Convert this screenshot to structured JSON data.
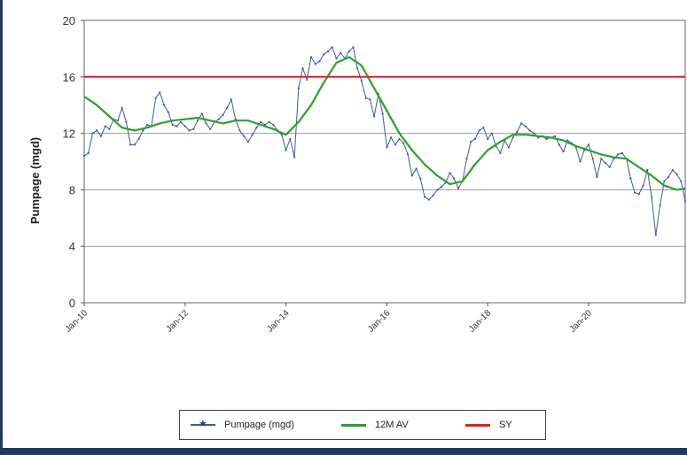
{
  "chart_data": {
    "type": "line",
    "ylabel": "Pumpage (mgd)",
    "ylim": [
      0,
      20
    ],
    "yticks": [
      0,
      4,
      8,
      12,
      16,
      20
    ],
    "xlim": [
      "Jan-10",
      "Dec-21"
    ],
    "xticks": [
      "Jan-10",
      "Jan-12",
      "Jan-14",
      "Jan-16",
      "Jan-18",
      "Jan-20"
    ],
    "grid": "horizontal",
    "legend_position": "bottom",
    "series": [
      {
        "name": "Pumpage (mgd)",
        "color": "#3b5a98",
        "marker": "star",
        "x": [
          "2010-01",
          "2010-02",
          "2010-03",
          "2010-04",
          "2010-05",
          "2010-06",
          "2010-07",
          "2010-08",
          "2010-09",
          "2010-10",
          "2010-11",
          "2010-12",
          "2011-01",
          "2011-02",
          "2011-03",
          "2011-04",
          "2011-05",
          "2011-06",
          "2011-07",
          "2011-08",
          "2011-09",
          "2011-10",
          "2011-11",
          "2011-12",
          "2012-01",
          "2012-02",
          "2012-03",
          "2012-04",
          "2012-05",
          "2012-06",
          "2012-07",
          "2012-08",
          "2012-09",
          "2012-10",
          "2012-11",
          "2012-12",
          "2013-01",
          "2013-02",
          "2013-03",
          "2013-04",
          "2013-05",
          "2013-06",
          "2013-07",
          "2013-08",
          "2013-09",
          "2013-10",
          "2013-11",
          "2013-12",
          "2014-01",
          "2014-02",
          "2014-03",
          "2014-04",
          "2014-05",
          "2014-06",
          "2014-07",
          "2014-08",
          "2014-09",
          "2014-10",
          "2014-11",
          "2014-12",
          "2015-01",
          "2015-02",
          "2015-03",
          "2015-04",
          "2015-05",
          "2015-06",
          "2015-07",
          "2015-08",
          "2015-09",
          "2015-10",
          "2015-11",
          "2015-12",
          "2016-01",
          "2016-02",
          "2016-03",
          "2016-04",
          "2016-05",
          "2016-06",
          "2016-07",
          "2016-08",
          "2016-09",
          "2016-10",
          "2016-11",
          "2016-12",
          "2017-01",
          "2017-02",
          "2017-03",
          "2017-04",
          "2017-05",
          "2017-06",
          "2017-07",
          "2017-08",
          "2017-09",
          "2017-10",
          "2017-11",
          "2017-12",
          "2018-01",
          "2018-02",
          "2018-03",
          "2018-04",
          "2018-05",
          "2018-06",
          "2018-07",
          "2018-08",
          "2018-09",
          "2018-10",
          "2018-11",
          "2018-12",
          "2019-01",
          "2019-02",
          "2019-03",
          "2019-04",
          "2019-05",
          "2019-06",
          "2019-07",
          "2019-08",
          "2019-09",
          "2019-10",
          "2019-11",
          "2019-12",
          "2020-01",
          "2020-02",
          "2020-03",
          "2020-04",
          "2020-05",
          "2020-06",
          "2020-07",
          "2020-08",
          "2020-09",
          "2020-10",
          "2020-11",
          "2020-12",
          "2021-01",
          "2021-02",
          "2021-03",
          "2021-04",
          "2021-05",
          "2021-06",
          "2021-07",
          "2021-08",
          "2021-09",
          "2021-10",
          "2021-11",
          "2021-12"
        ],
        "y": [
          10.4,
          10.6,
          12.0,
          12.2,
          11.8,
          12.5,
          12.3,
          13.0,
          12.9,
          13.8,
          12.8,
          11.2,
          11.2,
          11.6,
          12.2,
          12.6,
          12.5,
          14.5,
          14.9,
          14.0,
          13.5,
          12.6,
          12.5,
          12.8,
          12.5,
          12.2,
          12.3,
          12.9,
          13.4,
          12.7,
          12.3,
          12.8,
          13.0,
          13.3,
          13.8,
          14.4,
          13.0,
          12.2,
          11.8,
          11.4,
          11.9,
          12.4,
          12.8,
          12.6,
          12.8,
          12.6,
          12.2,
          11.9,
          10.8,
          11.6,
          10.3,
          15.2,
          16.6,
          15.8,
          17.4,
          16.9,
          17.1,
          17.6,
          17.8,
          18.1,
          17.3,
          17.7,
          17.3,
          17.8,
          18.1,
          16.6,
          15.7,
          14.5,
          14.4,
          13.2,
          14.8,
          13.4,
          11.0,
          11.7,
          11.2,
          11.6,
          11.3,
          10.5,
          9.0,
          9.5,
          8.8,
          7.5,
          7.3,
          7.6,
          8.0,
          8.2,
          8.5,
          9.2,
          8.8,
          8.1,
          8.6,
          10.2,
          11.4,
          11.6,
          12.2,
          12.4,
          11.6,
          12.0,
          11.1,
          10.6,
          11.5,
          11.0,
          11.7,
          12.1,
          12.7,
          12.5,
          12.2,
          12.0,
          11.7,
          11.8,
          11.6,
          11.7,
          11.8,
          11.2,
          10.7,
          11.5,
          11.3,
          11.0,
          10.0,
          10.8,
          11.2,
          10.2,
          8.9,
          10.2,
          9.9,
          9.6,
          10.2,
          10.5,
          10.6,
          10.2,
          8.8,
          7.8,
          7.7,
          8.3,
          9.4,
          7.5,
          4.8,
          6.9,
          8.6,
          8.9,
          9.4,
          9.1,
          8.6,
          7.2
        ]
      },
      {
        "name": "12M AV",
        "color": "#2f9e2f",
        "x": [
          "2010-01",
          "2010-04",
          "2010-07",
          "2010-10",
          "2011-01",
          "2011-04",
          "2011-07",
          "2011-10",
          "2012-01",
          "2012-04",
          "2012-07",
          "2012-10",
          "2013-01",
          "2013-04",
          "2013-07",
          "2013-10",
          "2014-01",
          "2014-04",
          "2014-07",
          "2014-10",
          "2015-01",
          "2015-04",
          "2015-07",
          "2015-10",
          "2016-01",
          "2016-04",
          "2016-07",
          "2016-10",
          "2017-01",
          "2017-04",
          "2017-07",
          "2017-10",
          "2018-01",
          "2018-04",
          "2018-07",
          "2018-10",
          "2019-01",
          "2019-04",
          "2019-07",
          "2019-10",
          "2020-01",
          "2020-04",
          "2020-07",
          "2020-10",
          "2021-01",
          "2021-04",
          "2021-07",
          "2021-10",
          "2021-12"
        ],
        "y": [
          14.6,
          14.0,
          13.2,
          12.4,
          12.2,
          12.4,
          12.7,
          12.9,
          13.0,
          13.1,
          12.9,
          12.7,
          12.9,
          12.9,
          12.6,
          12.3,
          11.9,
          12.8,
          14.0,
          15.6,
          17.0,
          17.4,
          16.8,
          15.2,
          13.6,
          12.0,
          10.8,
          9.8,
          9.0,
          8.4,
          8.6,
          9.8,
          10.8,
          11.4,
          11.9,
          11.9,
          11.8,
          11.7,
          11.5,
          11.1,
          10.8,
          10.5,
          10.3,
          10.2,
          9.6,
          9.0,
          8.3,
          8.0,
          8.1
        ]
      },
      {
        "name": "SY",
        "color": "#e02020",
        "x": [
          "2010-01",
          "2021-12"
        ],
        "y": [
          16,
          16
        ]
      }
    ]
  }
}
